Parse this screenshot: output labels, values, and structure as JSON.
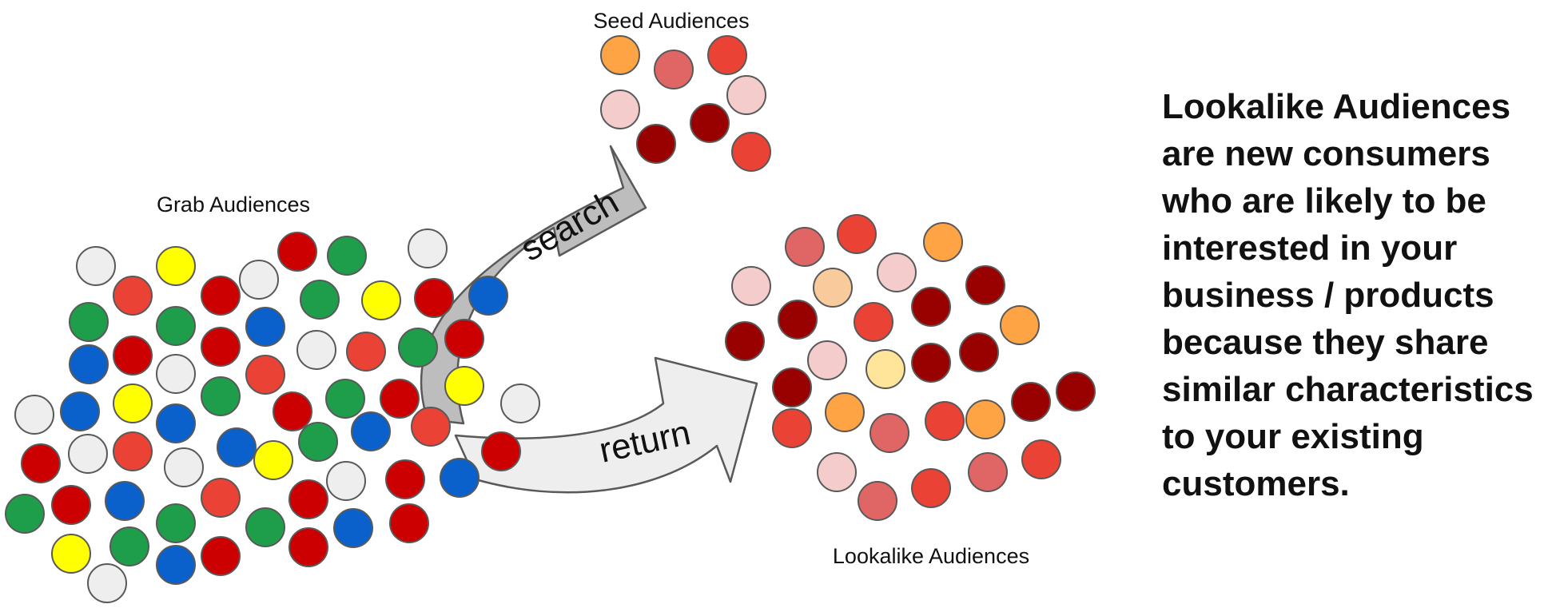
{
  "labels": {
    "seed": "Seed Audiences",
    "grab": "Grab Audiences",
    "lookalike": "Lookalike Audiences"
  },
  "arrows": {
    "search": "search",
    "return": "return"
  },
  "description": {
    "lines": [
      "Lookalike Audiences",
      "are new consumers",
      "who are likely to be",
      "interested in your",
      "business / products",
      "because they share",
      "similar characteristics",
      "to your existing",
      "customers."
    ]
  },
  "colors": {
    "grey": "#eeeeee",
    "red": "#cc0000",
    "bright_red": "#ea4335",
    "green": "#1e9e4a",
    "blue": "#0b61cc",
    "yellow": "#ffff00",
    "orange": "#ffa444",
    "pink": "#f4cccc",
    "salmon": "#e06666",
    "dark_red": "#990000",
    "peach": "#f9cb9c",
    "light_yellow": "#ffe599",
    "arrow_search": "#bdbdbd",
    "arrow_return": "#eeeeee",
    "outline": "#595959"
  }
}
